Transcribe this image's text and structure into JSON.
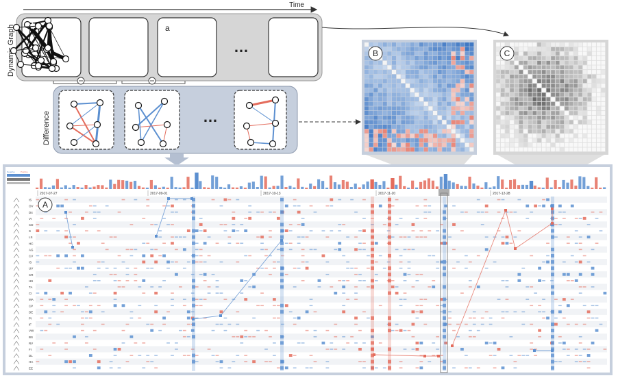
{
  "timeline": {
    "label": "Time"
  },
  "dynamic_graph": {
    "label": "Dynamic Graph",
    "ellipsis": "…",
    "annotation": "a"
  },
  "difference": {
    "label": "Difference",
    "ellipsis": "…"
  },
  "panels": {
    "a": "A",
    "b": "B",
    "c": "C"
  },
  "dates": [
    "2017-07-27",
    "2017-09-01",
    "2017-10-13",
    "2017-11-20",
    "2017-12-28"
  ],
  "legend": {
    "left": "Negative",
    "right": "Positive"
  },
  "rows": [
    "IS",
    "OV",
    "D4",
    "VI",
    "CD",
    "S",
    "LS",
    "HC",
    "AG",
    "CV",
    "IS",
    "UV",
    "CR",
    "HS",
    "TA",
    "CI",
    "MA",
    "CP",
    "DE",
    "PI",
    "IF",
    "VW",
    "BS",
    "RV",
    "FI",
    "DL",
    "HA",
    "EE"
  ],
  "colors": {
    "positive": "#e46c5c",
    "negative": "#5b8fd0",
    "panel_bg": "#c6cfdd",
    "gray_panel": "#d6d6d6"
  }
}
